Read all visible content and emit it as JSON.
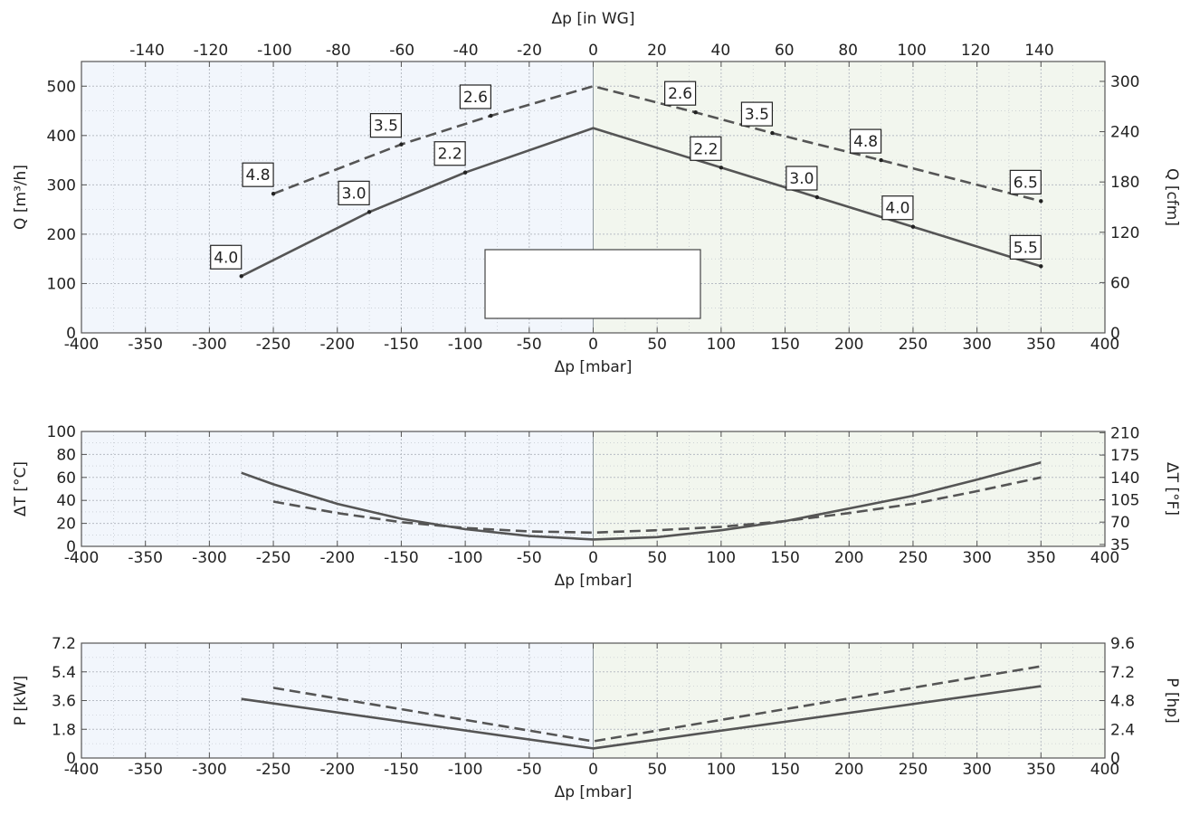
{
  "colors": {
    "negative_bg": "#f2f6fc",
    "positive_bg": "#f2f6ee",
    "grid": "#b7bcc4",
    "line": "#555555",
    "frame": "#555555"
  },
  "chart_data": [
    {
      "type": "line",
      "name": "flow",
      "xlabel": "Δp [mbar]",
      "x2label": "Δp [in WG]",
      "ylabel": "Q [m³/h]",
      "y2label": "Q [cfm]",
      "xlim": [
        -400,
        400
      ],
      "ylim": [
        0,
        550
      ],
      "x2lim": [
        -160.6,
        160.6
      ],
      "y2lim": [
        0,
        323.7
      ],
      "xticks": [
        -400,
        -350,
        -300,
        -250,
        -200,
        -150,
        -100,
        -50,
        0,
        50,
        100,
        150,
        200,
        250,
        300,
        350,
        400
      ],
      "x2ticks": [
        -140,
        -120,
        -100,
        -80,
        -60,
        -40,
        -20,
        0,
        20,
        40,
        60,
        80,
        100,
        120,
        140
      ],
      "yticks": [
        0,
        100,
        200,
        300,
        400,
        500
      ],
      "y2ticks": [
        0,
        60,
        120,
        180,
        240,
        300
      ],
      "grid": true,
      "legend": "empty box, bottom-center",
      "legend_entries": [],
      "series": [
        {
          "style": "solid",
          "x": [
            -275,
            -175,
            -100,
            0,
            100,
            175,
            250,
            350
          ],
          "y": [
            115,
            245,
            325,
            415,
            335,
            275,
            215,
            135
          ]
        },
        {
          "style": "dashed",
          "x": [
            -250,
            -150,
            -80,
            0,
            80,
            140,
            225,
            350
          ],
          "y": [
            282,
            382,
            440,
            500,
            447,
            405,
            350,
            267
          ]
        }
      ],
      "annotations": [
        {
          "x": -275,
          "y": 115,
          "text": "4.0"
        },
        {
          "x": -175,
          "y": 245,
          "text": "3.0"
        },
        {
          "x": -100,
          "y": 325,
          "text": "2.2"
        },
        {
          "x": 100,
          "y": 335,
          "text": "2.2"
        },
        {
          "x": 175,
          "y": 275,
          "text": "3.0"
        },
        {
          "x": 250,
          "y": 215,
          "text": "4.0"
        },
        {
          "x": 350,
          "y": 135,
          "text": "5.5"
        },
        {
          "x": -250,
          "y": 282,
          "text": "4.8"
        },
        {
          "x": -150,
          "y": 382,
          "text": "3.5"
        },
        {
          "x": -80,
          "y": 440,
          "text": "2.6"
        },
        {
          "x": 80,
          "y": 447,
          "text": "2.6"
        },
        {
          "x": 140,
          "y": 405,
          "text": "3.5"
        },
        {
          "x": 225,
          "y": 350,
          "text": "4.8"
        },
        {
          "x": 350,
          "y": 267,
          "text": "6.5"
        }
      ]
    },
    {
      "type": "line",
      "name": "temperature",
      "xlabel": "Δp [mbar]",
      "ylabel": "ΔT [°C]",
      "y2label": "ΔT [°F]",
      "xlim": [
        -400,
        400
      ],
      "ylim": [
        0,
        100
      ],
      "y2lim": [
        32,
        212
      ],
      "xticks": [
        -400,
        -350,
        -300,
        -250,
        -200,
        -150,
        -100,
        -50,
        0,
        50,
        100,
        150,
        200,
        250,
        300,
        350,
        400
      ],
      "yticks": [
        0,
        20,
        40,
        60,
        80,
        100
      ],
      "y2ticks": [
        35,
        70,
        105,
        140,
        175,
        210
      ],
      "grid": true,
      "series": [
        {
          "style": "solid",
          "x": [
            -275,
            -250,
            -200,
            -150,
            -100,
            -50,
            0,
            50,
            100,
            150,
            200,
            250,
            300,
            350
          ],
          "y": [
            64,
            54,
            37,
            24,
            15,
            9,
            6,
            8,
            14,
            22,
            33,
            44,
            58,
            73
          ]
        },
        {
          "style": "dashed",
          "x": [
            -250,
            -200,
            -150,
            -100,
            -50,
            0,
            50,
            100,
            150,
            200,
            250,
            300,
            350
          ],
          "y": [
            39,
            29,
            21,
            16,
            13,
            12,
            14,
            17,
            22,
            29,
            37,
            48,
            60
          ]
        }
      ]
    },
    {
      "type": "line",
      "name": "power",
      "xlabel": "Δp [mbar]",
      "ylabel": "P [kW]",
      "y2label": "P [hp]",
      "xlim": [
        -400,
        400
      ],
      "ylim": [
        0,
        7.2
      ],
      "y2lim": [
        0,
        9.6
      ],
      "xticks": [
        -400,
        -350,
        -300,
        -250,
        -200,
        -150,
        -100,
        -50,
        0,
        50,
        100,
        150,
        200,
        250,
        300,
        350,
        400
      ],
      "yticks": [
        0,
        1.8,
        3.6,
        5.4,
        7.2
      ],
      "y2ticks": [
        0,
        2.4,
        4.8,
        7.2,
        9.6
      ],
      "grid": true,
      "series": [
        {
          "style": "solid",
          "x": [
            -275,
            0,
            350
          ],
          "y": [
            3.7,
            0.6,
            4.5
          ]
        },
        {
          "style": "dashed",
          "x": [
            -250,
            0,
            350
          ],
          "y": [
            4.4,
            1.05,
            5.75
          ]
        }
      ]
    }
  ]
}
